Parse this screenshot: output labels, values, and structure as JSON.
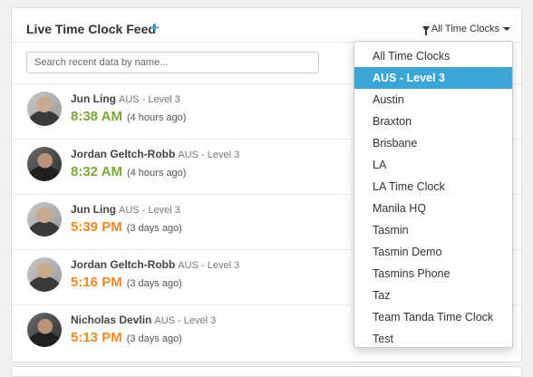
{
  "header": {
    "title": "Live Time Clock Feed",
    "add_label": "+",
    "filter_label": "All Time Clocks",
    "filter_icon": "funnel-icon"
  },
  "search": {
    "placeholder": "Search recent data by name..."
  },
  "feed": [
    {
      "name": "Jun Ling",
      "location": "AUS - Level 3",
      "time": "8:38 AM",
      "ago": "(4 hours ago)",
      "status": "clock-in",
      "color": "#7aa83a"
    },
    {
      "name": "Jordan Geltch-Robb",
      "location": "AUS - Level 3",
      "time": "8:32 AM",
      "ago": "(4 hours ago)",
      "status": "clock-in",
      "color": "#7aa83a"
    },
    {
      "name": "Jun Ling",
      "location": "AUS - Level 3",
      "time": "5:39 PM",
      "ago": "(3 days ago)",
      "status": "clock-out",
      "color": "#f0882a"
    },
    {
      "name": "Jordan Geltch-Robb",
      "location": "AUS - Level 3",
      "time": "5:16 PM",
      "ago": "(3 days ago)",
      "status": "clock-out",
      "color": "#f0882a"
    },
    {
      "name": "Nicholas Devlin",
      "location": "AUS - Level 3",
      "time": "5:13 PM",
      "ago": "(3 days ago)",
      "status": "clock-out",
      "color": "#f0882a"
    }
  ],
  "dropdown": {
    "selected": "AUS - Level 3",
    "items": [
      "All Time Clocks",
      "AUS - Level 3",
      "Austin",
      "Braxton",
      "Brisbane",
      "LA",
      "LA Time Clock",
      "Manila HQ",
      "Tasmin",
      "Tasmin Demo",
      "Tasmins Phone",
      "Taz",
      "Team Tanda Time Clock",
      "Test"
    ]
  },
  "colors": {
    "accent": "#3aa6d6",
    "clock_in": "#7aa83a",
    "clock_out": "#f0882a"
  }
}
